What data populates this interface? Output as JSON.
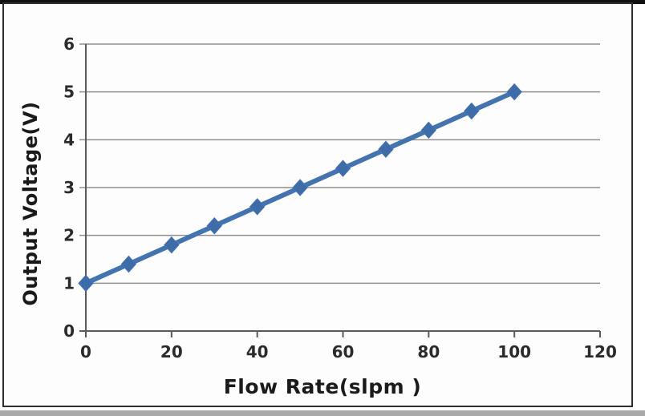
{
  "chart_data": {
    "type": "line",
    "title": "",
    "xlabel": "Flow Rate(slpm )",
    "ylabel": "Output Voltage(V)",
    "x": [
      0,
      10,
      20,
      30,
      40,
      50,
      60,
      70,
      80,
      90,
      100
    ],
    "y": [
      1.0,
      1.4,
      1.8,
      2.2,
      2.6,
      3.0,
      3.4,
      3.8,
      4.2,
      4.6,
      5.0
    ],
    "xlim": [
      0,
      120
    ],
    "ylim": [
      0,
      6
    ],
    "xticks": [
      0,
      20,
      40,
      60,
      80,
      100,
      120
    ],
    "yticks": [
      0,
      1,
      2,
      3,
      4,
      5,
      6
    ],
    "grid": true,
    "legend": false,
    "marker": "diamond",
    "colors": {
      "line": "#4474af",
      "marker_fill": "#3d6ca9",
      "gridline": "#8f8f8f",
      "axis_line": "#5a5a5a",
      "tick_text": "#2b2b2b",
      "title_text": "#1a1a1a",
      "frame_border": "#2e2e2e",
      "top_bar": "#101010",
      "bottom_strip": "#a8a8a8",
      "background": "#fdfdfd"
    }
  }
}
